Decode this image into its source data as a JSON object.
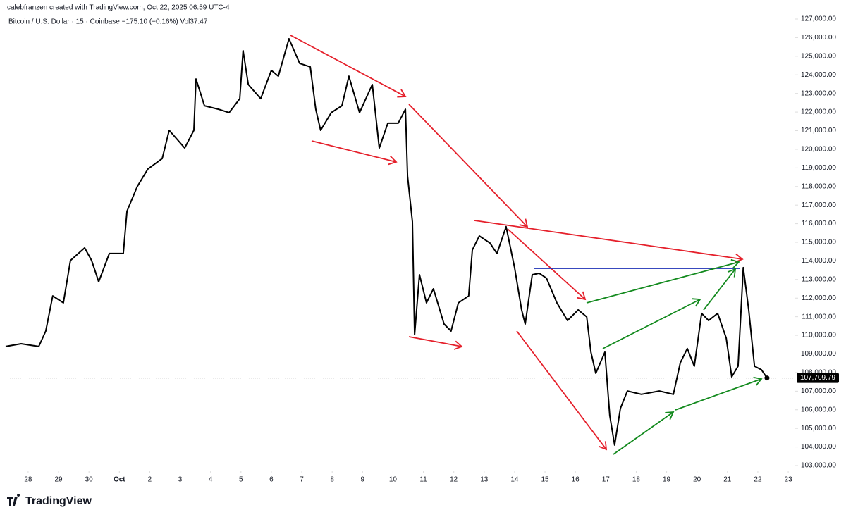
{
  "chart_data": {
    "type": "line",
    "title": "calebfranzen created with TradingView.com, Oct 22, 2025 06:59 UTC-4",
    "subtitle": "Bitcoin / U.S. Dollar · 15 · Coinbase  −175.10 (−0.16%)  Vol37.47",
    "brand": "TradingView",
    "color": "#000000",
    "x": [
      -0.74,
      -0.23,
      0.35,
      0.58,
      0.81,
      1.16,
      1.39,
      1.86,
      2.09,
      2.32,
      2.67,
      3.13,
      3.25,
      3.59,
      3.94,
      4.41,
      4.64,
      5.15,
      5.45,
      5.52,
      5.8,
      6.26,
      6.61,
      6.96,
      7.07,
      7.24,
      7.65,
      8.0,
      8.23,
      8.58,
      8.93,
      9.28,
      9.46,
      9.62,
      9.97,
      10.32,
      10.55,
      10.9,
      11.32,
      11.55,
      11.83,
      12.17,
      12.41,
      12.48,
      12.64,
      12.71,
      12.87,
      13.1,
      13.33,
      13.68,
      13.91,
      14.15,
      14.49,
      14.61,
      14.84,
      15.19,
      15.42,
      15.72,
      16.0,
      16.23,
      16.35,
      16.58,
      16.81,
      17.05,
      17.39,
      17.74,
      18.09,
      18.37,
      18.51,
      18.67,
      18.97,
      19.13,
      19.29,
      19.48,
      19.71,
      20.17,
      20.76,
      21.22,
      21.45,
      21.68,
      21.91,
      22.15,
      22.38,
      22.68,
      22.96,
      23.14,
      23.35,
      23.52,
      23.7,
      23.89,
      24.12,
      24.3
    ],
    "values": [
      109400,
      109550,
      109400,
      110230,
      112120,
      111750,
      114020,
      114700,
      114020,
      112880,
      114400,
      114400,
      116670,
      118000,
      118940,
      119500,
      121020,
      120070,
      121020,
      123780,
      122340,
      122150,
      121970,
      122720,
      125300,
      123480,
      122720,
      124240,
      123930,
      125940,
      124620,
      124430,
      122150,
      121020,
      121970,
      122340,
      123930,
      121970,
      123480,
      120070,
      121400,
      121400,
      122150,
      118560,
      116100,
      110040,
      113260,
      111750,
      112500,
      110610,
      110230,
      111750,
      112120,
      114590,
      115340,
      114960,
      114400,
      115840,
      113640,
      111370,
      110610,
      113260,
      113340,
      113070,
      111750,
      110800,
      111370,
      110990,
      109100,
      107960,
      109100,
      105690,
      104100,
      106070,
      107010,
      106830,
      107010,
      106830,
      108530,
      109290,
      108340,
      111180,
      110800,
      111180,
      109850,
      107770,
      108340,
      113640,
      111370,
      108340,
      108150,
      107709.79
    ],
    "last_price": {
      "value": 107709.79,
      "label": "107,709.79"
    },
    "xlim": [
      -0.74,
      25.23
    ],
    "ylim": [
      102735,
      126508
    ],
    "xticks": [
      {
        "value": 0,
        "label": "28"
      },
      {
        "value": 1,
        "label": "29"
      },
      {
        "value": 2,
        "label": "30"
      },
      {
        "value": 3,
        "label": "Oct"
      },
      {
        "value": 4,
        "label": "2"
      },
      {
        "value": 5,
        "label": "3"
      },
      {
        "value": 6,
        "label": "4"
      },
      {
        "value": 7,
        "label": "5"
      },
      {
        "value": 8,
        "label": "6"
      },
      {
        "value": 9,
        "label": "7"
      },
      {
        "value": 10,
        "label": "8"
      },
      {
        "value": 11,
        "label": "9"
      },
      {
        "value": 12,
        "label": "10"
      },
      {
        "value": 13,
        "label": "11"
      },
      {
        "value": 14,
        "label": "12"
      },
      {
        "value": 15,
        "label": "13"
      },
      {
        "value": 16,
        "label": "14"
      },
      {
        "value": 17,
        "label": "15"
      },
      {
        "value": 18,
        "label": "16"
      },
      {
        "value": 19,
        "label": "17"
      },
      {
        "value": 20,
        "label": "18"
      },
      {
        "value": 21,
        "label": "19"
      },
      {
        "value": 22,
        "label": "20"
      },
      {
        "value": 23,
        "label": "21"
      },
      {
        "value": 24,
        "label": "22"
      },
      {
        "value": 25,
        "label": "23"
      }
    ],
    "yticks": [
      {
        "value": 103000,
        "label": "103,000.00"
      },
      {
        "value": 104000,
        "label": "104,000.00"
      },
      {
        "value": 105000,
        "label": "105,000.00"
      },
      {
        "value": 106000,
        "label": "106,000.00"
      },
      {
        "value": 107000,
        "label": "107,000.00"
      },
      {
        "value": 108000,
        "label": "108,000.00"
      },
      {
        "value": 109000,
        "label": "109,000.00"
      },
      {
        "value": 110000,
        "label": "110,000.00"
      },
      {
        "value": 111000,
        "label": "111,000.00"
      },
      {
        "value": 112000,
        "label": "112,000.00"
      },
      {
        "value": 113000,
        "label": "113,000.00"
      },
      {
        "value": 114000,
        "label": "114,000.00"
      },
      {
        "value": 115000,
        "label": "115,000.00"
      },
      {
        "value": 116000,
        "label": "116,000.00"
      },
      {
        "value": 117000,
        "label": "117,000.00"
      },
      {
        "value": 118000,
        "label": "118,000.00"
      },
      {
        "value": 119000,
        "label": "119,000.00"
      },
      {
        "value": 120000,
        "label": "120,000.00"
      },
      {
        "value": 121000,
        "label": "121,000.00"
      },
      {
        "value": 122000,
        "label": "122,000.00"
      },
      {
        "value": 123000,
        "label": "123,000.00"
      },
      {
        "value": 124000,
        "label": "124,000.00"
      },
      {
        "value": 125000,
        "label": "125,000.00"
      },
      {
        "value": 126000,
        "label": "126,000.00"
      },
      {
        "value": 127000,
        "label": "127,000.00"
      }
    ],
    "grid": false
  }
}
